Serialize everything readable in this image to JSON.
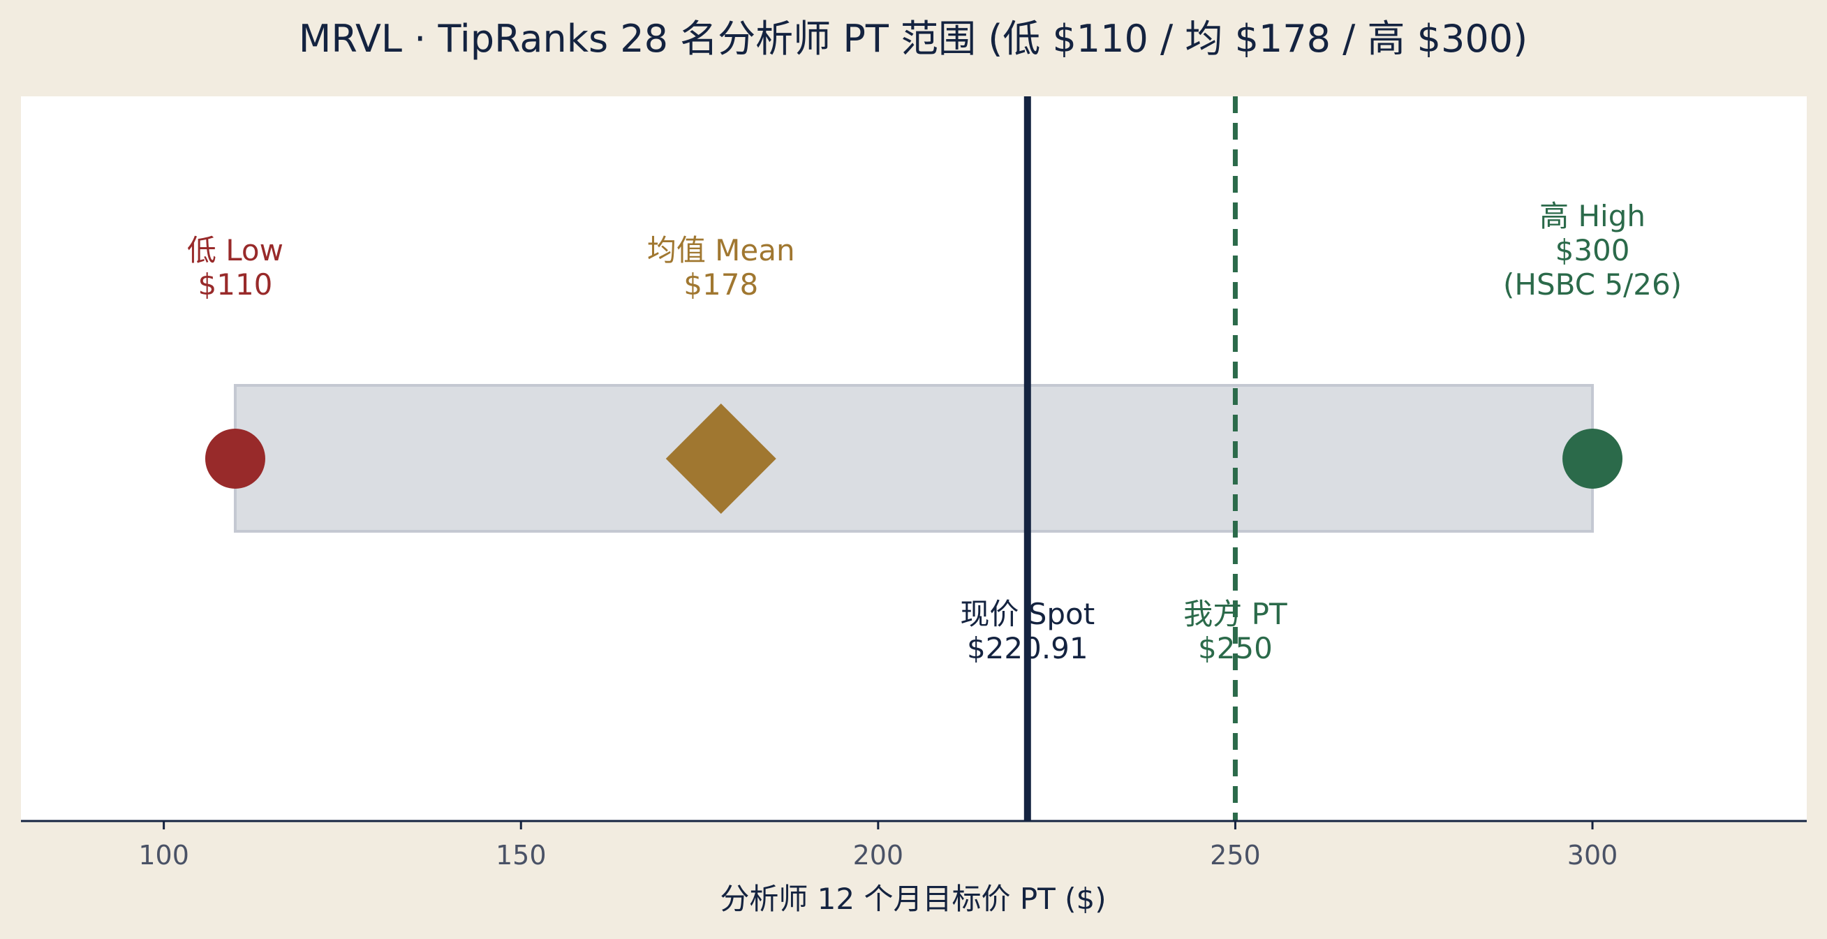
{
  "colors": {
    "background": "#f2ece0",
    "plot_background": "#ffffff",
    "range_fill": "#dadde2",
    "range_stroke": "#c4c8d2",
    "low": "#982a2a",
    "mean": "#a07730",
    "high": "#2b6a4a",
    "spot": "#142340",
    "axis": "#142340",
    "tick_text": "#4a5266",
    "title_text": "#142340"
  },
  "chart_data": {
    "type": "range",
    "title": "MRVL · TipRanks 28 名分析师 PT 范围 (低 $110 / 均 $178 / 高 $300)",
    "xlabel": "分析师 12 个月目标价 PT ($)",
    "xlim": [
      80,
      330
    ],
    "xticks": [
      100,
      150,
      200,
      250,
      300
    ],
    "grid": false,
    "range": {
      "low": 110,
      "high": 300
    },
    "points": [
      {
        "key": "low",
        "value": 110,
        "marker": "circle",
        "color_key": "low",
        "label_lines": [
          "低 Low",
          "$110"
        ]
      },
      {
        "key": "mean",
        "value": 178,
        "marker": "diamond",
        "color_key": "mean",
        "label_lines": [
          "均值 Mean",
          "$178"
        ]
      },
      {
        "key": "high",
        "value": 300,
        "marker": "circle",
        "color_key": "high",
        "label_lines": [
          "高 High",
          "$300",
          "(HSBC 5/26)"
        ]
      }
    ],
    "reference_lines": [
      {
        "key": "spot",
        "value": 220.91,
        "style": "solid",
        "color_key": "spot",
        "label_lines": [
          "现价 Spot",
          "$220.91"
        ]
      },
      {
        "key": "our_pt",
        "value": 250,
        "style": "dashed",
        "color_key": "high",
        "label_lines": [
          "我方 PT",
          "$250"
        ]
      }
    ]
  }
}
